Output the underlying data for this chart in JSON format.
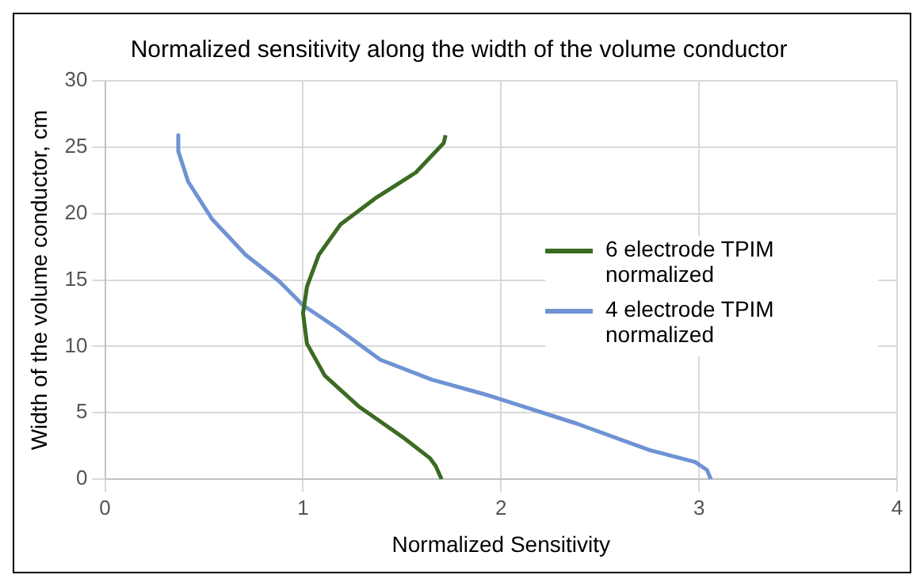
{
  "chart_data": {
    "type": "line",
    "title": "Normalized sensitivity along the width of the volume conductor",
    "xlabel": "Normalized Sensitivity",
    "ylabel": "Width of the volume conductor, cm",
    "series": [
      {
        "name": "6 electrode TPIM normalized",
        "color": "#3b6b22",
        "x": [
          1.72,
          1.71,
          1.57,
          1.37,
          1.19,
          1.08,
          1.02,
          1.0,
          1.02,
          1.11,
          1.28,
          1.51,
          1.64,
          1.67,
          1.7
        ],
        "values": [
          25.9,
          25.3,
          23.1,
          21.2,
          19.2,
          16.9,
          14.5,
          12.5,
          10.2,
          7.8,
          5.5,
          3.1,
          1.6,
          1.0,
          0
        ]
      },
      {
        "name": "4 electrode TPIM normalized",
        "color": "#6f93d3",
        "x": [
          0.37,
          0.37,
          0.42,
          0.54,
          0.71,
          0.88,
          1.0,
          1.17,
          1.39,
          1.65,
          1.94,
          2.38,
          2.75,
          2.98,
          3.04,
          3.06
        ],
        "values": [
          25.9,
          24.7,
          22.4,
          19.6,
          16.9,
          14.9,
          13.1,
          11.4,
          9.0,
          7.5,
          6.3,
          4.2,
          2.2,
          1.3,
          0.7,
          0
        ]
      }
    ],
    "xlim": [
      0,
      4
    ],
    "xticks": [
      0,
      1,
      2,
      3,
      4
    ],
    "ylim": [
      0,
      30
    ],
    "yticks": [
      0,
      5,
      10,
      15,
      20,
      25,
      30
    ],
    "grid": true,
    "legend": "right",
    "marker": "none",
    "line_style": "solid"
  }
}
